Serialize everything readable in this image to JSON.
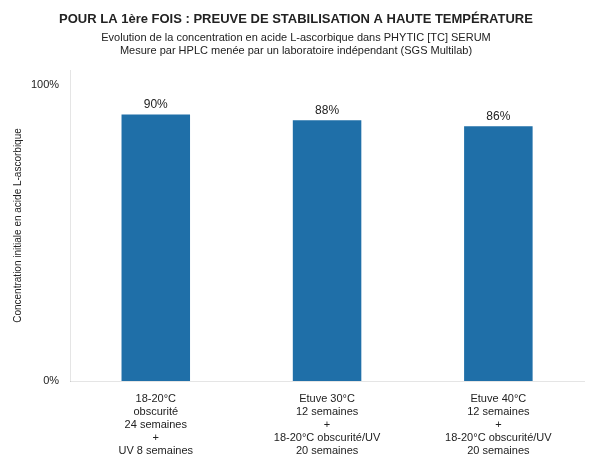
{
  "chart_data": {
    "type": "bar",
    "title": "POUR LA 1ère FOIS : PREUVE DE STABILISATION A HAUTE TEMPÉRATURE",
    "subtitle": "Evolution de la concentration en acide L-ascorbique dans PHYTIC [TC] SERUM\nMesure par HPLC menée par un laboratoire indépendant (SGS Multilab)",
    "y_label": "Concentration initiale en acide L-ascorbique",
    "categories": [
      "18-20°C\nobscurité\n24 semaines\n+\nUV 8 semaines",
      "Etuve 30°C\n12 semaines\n+\n18-20°C obscurité/UV\n20 semaines",
      "Etuve 40°C\n12 semaines\n+\n18-20°C obscurité/UV\n20 semaines"
    ],
    "values": [
      90,
      88,
      86
    ],
    "value_labels": [
      "90%",
      "88%",
      "86%"
    ],
    "color": "#1F6FA8",
    "ylim": [
      0,
      105
    ],
    "yticks": [
      {
        "value": 0,
        "label": "0%"
      },
      {
        "value": 100,
        "label": "100%"
      }
    ],
    "grid": false,
    "data_labels": true
  }
}
